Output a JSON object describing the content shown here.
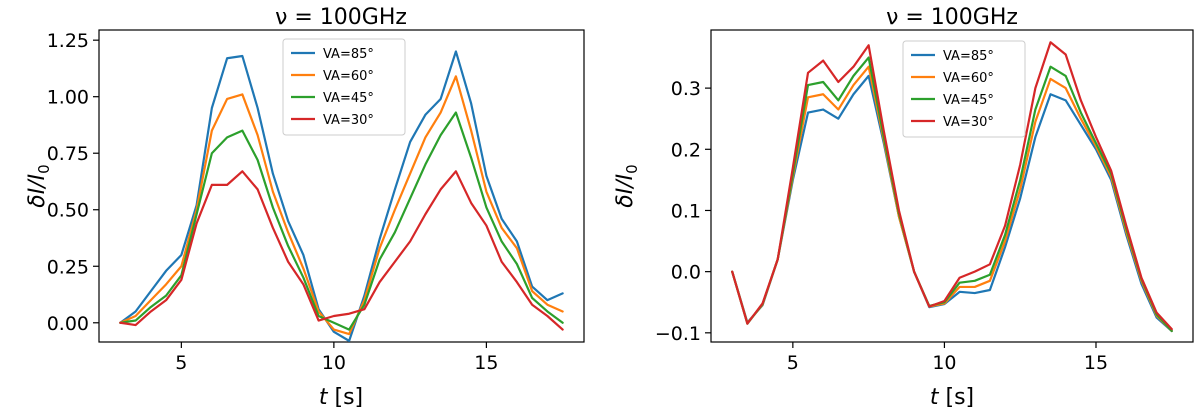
{
  "chart_data": [
    {
      "type": "line",
      "title": "ν = 100GHz",
      "xlabel_italic": "t",
      "xlabel_unit": " [s]",
      "ylabel_num": "δI/I",
      "ylabel_sub": "0",
      "xlim": [
        2.3,
        18.2
      ],
      "ylim": [
        -0.085,
        1.295
      ],
      "xticks": [
        5,
        10,
        15
      ],
      "xtick_labels": [
        "5",
        "10",
        "15"
      ],
      "yticks": [
        0.0,
        0.25,
        0.5,
        0.75,
        1.0,
        1.25
      ],
      "ytick_labels": [
        "0.00",
        "0.25",
        "0.50",
        "0.75",
        "1.00",
        "1.25"
      ],
      "legend_position": "top-center",
      "x": [
        3,
        3.5,
        4,
        4.5,
        5,
        5.5,
        6,
        6.5,
        7,
        7.5,
        8,
        8.5,
        9,
        9.5,
        10,
        10.5,
        11,
        11.5,
        12,
        12.5,
        13,
        13.5,
        14,
        14.5,
        15,
        15.5,
        16,
        16.5,
        17,
        17.5
      ],
      "series": [
        {
          "name": "VA=85°",
          "color": "#1f77b4",
          "values": [
            0.0,
            0.05,
            0.14,
            0.23,
            0.3,
            0.52,
            0.95,
            1.17,
            1.18,
            0.95,
            0.66,
            0.45,
            0.3,
            0.06,
            -0.04,
            -0.08,
            0.12,
            0.37,
            0.59,
            0.8,
            0.92,
            0.99,
            1.2,
            0.97,
            0.65,
            0.46,
            0.36,
            0.16,
            0.1,
            0.13
          ]
        },
        {
          "name": "VA=60°",
          "color": "#ff7f0e",
          "values": [
            0.0,
            0.03,
            0.1,
            0.17,
            0.25,
            0.5,
            0.85,
            0.99,
            1.01,
            0.83,
            0.58,
            0.4,
            0.24,
            0.05,
            -0.03,
            -0.05,
            0.1,
            0.33,
            0.5,
            0.66,
            0.82,
            0.93,
            1.09,
            0.85,
            0.58,
            0.42,
            0.33,
            0.14,
            0.08,
            0.05
          ]
        },
        {
          "name": "VA=45°",
          "color": "#2ca02c",
          "values": [
            0.0,
            0.01,
            0.07,
            0.12,
            0.21,
            0.48,
            0.75,
            0.82,
            0.85,
            0.72,
            0.51,
            0.34,
            0.2,
            0.03,
            0.0,
            -0.03,
            0.08,
            0.28,
            0.4,
            0.55,
            0.7,
            0.83,
            0.93,
            0.73,
            0.51,
            0.36,
            0.26,
            0.11,
            0.05,
            0.0
          ]
        },
        {
          "name": "VA=30°",
          "color": "#d62728",
          "values": [
            0.0,
            -0.01,
            0.05,
            0.1,
            0.19,
            0.44,
            0.61,
            0.61,
            0.67,
            0.59,
            0.42,
            0.27,
            0.17,
            0.01,
            0.03,
            0.04,
            0.06,
            0.18,
            0.27,
            0.36,
            0.48,
            0.59,
            0.67,
            0.53,
            0.43,
            0.27,
            0.18,
            0.08,
            0.03,
            -0.03
          ]
        }
      ]
    },
    {
      "type": "line",
      "title": "ν = 100GHz",
      "xlabel_italic": "t",
      "xlabel_unit": " [s]",
      "ylabel_num": "δI/I",
      "ylabel_sub": "0",
      "xlim": [
        2.3,
        18.2
      ],
      "ylim": [
        -0.115,
        0.395
      ],
      "xticks": [
        5,
        10,
        15
      ],
      "xtick_labels": [
        "5",
        "10",
        "15"
      ],
      "yticks": [
        -0.1,
        0.0,
        0.1,
        0.2,
        0.3
      ],
      "ytick_labels": [
        "−0.1",
        "0.0",
        "0.1",
        "0.2",
        "0.3"
      ],
      "legend_position": "top-center",
      "x": [
        3,
        3.5,
        4,
        4.5,
        5,
        5.5,
        6,
        6.5,
        7,
        7.5,
        8,
        8.5,
        9,
        9.5,
        10,
        10.5,
        11,
        11.5,
        12,
        12.5,
        13,
        13.5,
        14,
        14.5,
        15,
        15.5,
        16,
        16.5,
        17,
        17.5
      ],
      "series": [
        {
          "name": "VA=85°",
          "color": "#1f77b4",
          "values": [
            0.0,
            -0.083,
            -0.055,
            0.02,
            0.15,
            0.26,
            0.265,
            0.25,
            0.29,
            0.32,
            0.21,
            0.09,
            0.0,
            -0.058,
            -0.053,
            -0.033,
            -0.035,
            -0.03,
            0.04,
            0.12,
            0.22,
            0.29,
            0.28,
            0.24,
            0.2,
            0.15,
            0.06,
            -0.02,
            -0.075,
            -0.097
          ]
        },
        {
          "name": "VA=60°",
          "color": "#ff7f0e",
          "values": [
            0.0,
            -0.084,
            -0.054,
            0.02,
            0.155,
            0.285,
            0.29,
            0.265,
            0.305,
            0.335,
            0.215,
            0.09,
            0.0,
            -0.057,
            -0.052,
            -0.025,
            -0.025,
            -0.015,
            0.05,
            0.135,
            0.245,
            0.315,
            0.3,
            0.25,
            0.205,
            0.155,
            0.065,
            -0.015,
            -0.072,
            -0.097
          ]
        },
        {
          "name": "VA=45°",
          "color": "#2ca02c",
          "values": [
            0.0,
            -0.085,
            -0.053,
            0.02,
            0.16,
            0.305,
            0.31,
            0.28,
            0.32,
            0.35,
            0.22,
            0.095,
            0.0,
            -0.056,
            -0.05,
            -0.018,
            -0.015,
            -0.005,
            0.06,
            0.15,
            0.265,
            0.335,
            0.32,
            0.26,
            0.21,
            0.16,
            0.07,
            -0.012,
            -0.07,
            -0.097
          ]
        },
        {
          "name": "VA=30°",
          "color": "#d62728",
          "values": [
            0.0,
            -0.085,
            -0.052,
            0.02,
            0.17,
            0.325,
            0.345,
            0.31,
            0.335,
            0.37,
            0.23,
            0.1,
            0.0,
            -0.057,
            -0.048,
            -0.01,
            0.0,
            0.012,
            0.075,
            0.175,
            0.3,
            0.375,
            0.355,
            0.28,
            0.22,
            0.165,
            0.075,
            -0.01,
            -0.067,
            -0.094
          ]
        }
      ]
    }
  ]
}
